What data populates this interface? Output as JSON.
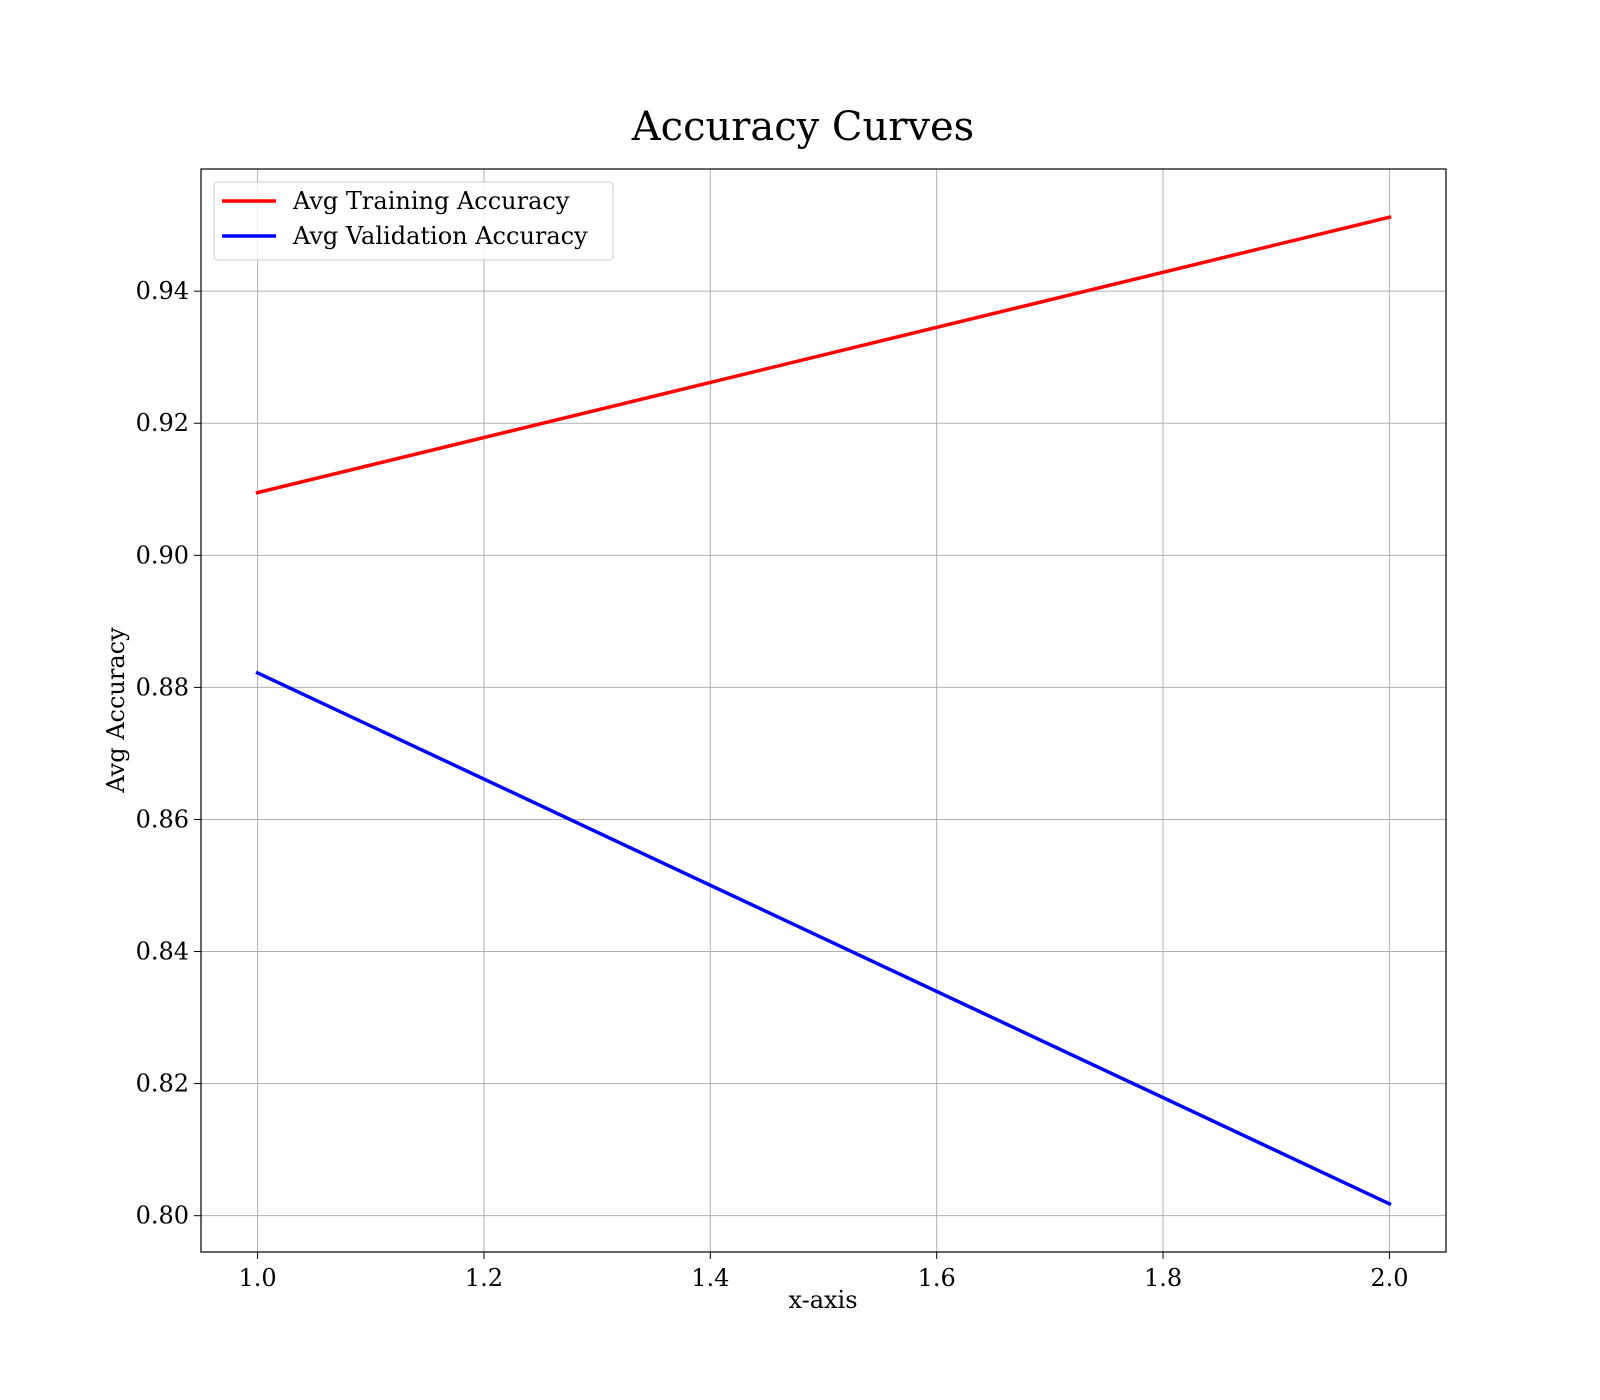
{
  "chart_data": {
    "type": "line",
    "title": "Accuracy Curves",
    "xlabel": "x-axis",
    "ylabel": "Avg Accuracy",
    "x": [
      1.0,
      2.0
    ],
    "xlim": [
      0.95,
      2.05
    ],
    "ylim": [
      0.7945,
      0.9585
    ],
    "xticks": [
      1.0,
      1.2,
      1.4,
      1.6,
      1.8,
      2.0
    ],
    "xtick_labels": [
      "1.0",
      "1.2",
      "1.4",
      "1.6",
      "1.8",
      "2.0"
    ],
    "yticks": [
      0.8,
      0.82,
      0.84,
      0.86,
      0.88,
      0.9,
      0.92,
      0.94
    ],
    "ytick_labels": [
      "0.80",
      "0.82",
      "0.84",
      "0.86",
      "0.88",
      "0.90",
      "0.92",
      "0.94"
    ],
    "grid": true,
    "legend_position": "top-left",
    "series": [
      {
        "name": "Avg Training Accuracy",
        "color": "#ff0000",
        "values": [
          0.9095,
          0.9512
        ]
      },
      {
        "name": "Avg Validation Accuracy",
        "color": "#0000ff",
        "values": [
          0.8822,
          0.8018
        ]
      }
    ]
  }
}
